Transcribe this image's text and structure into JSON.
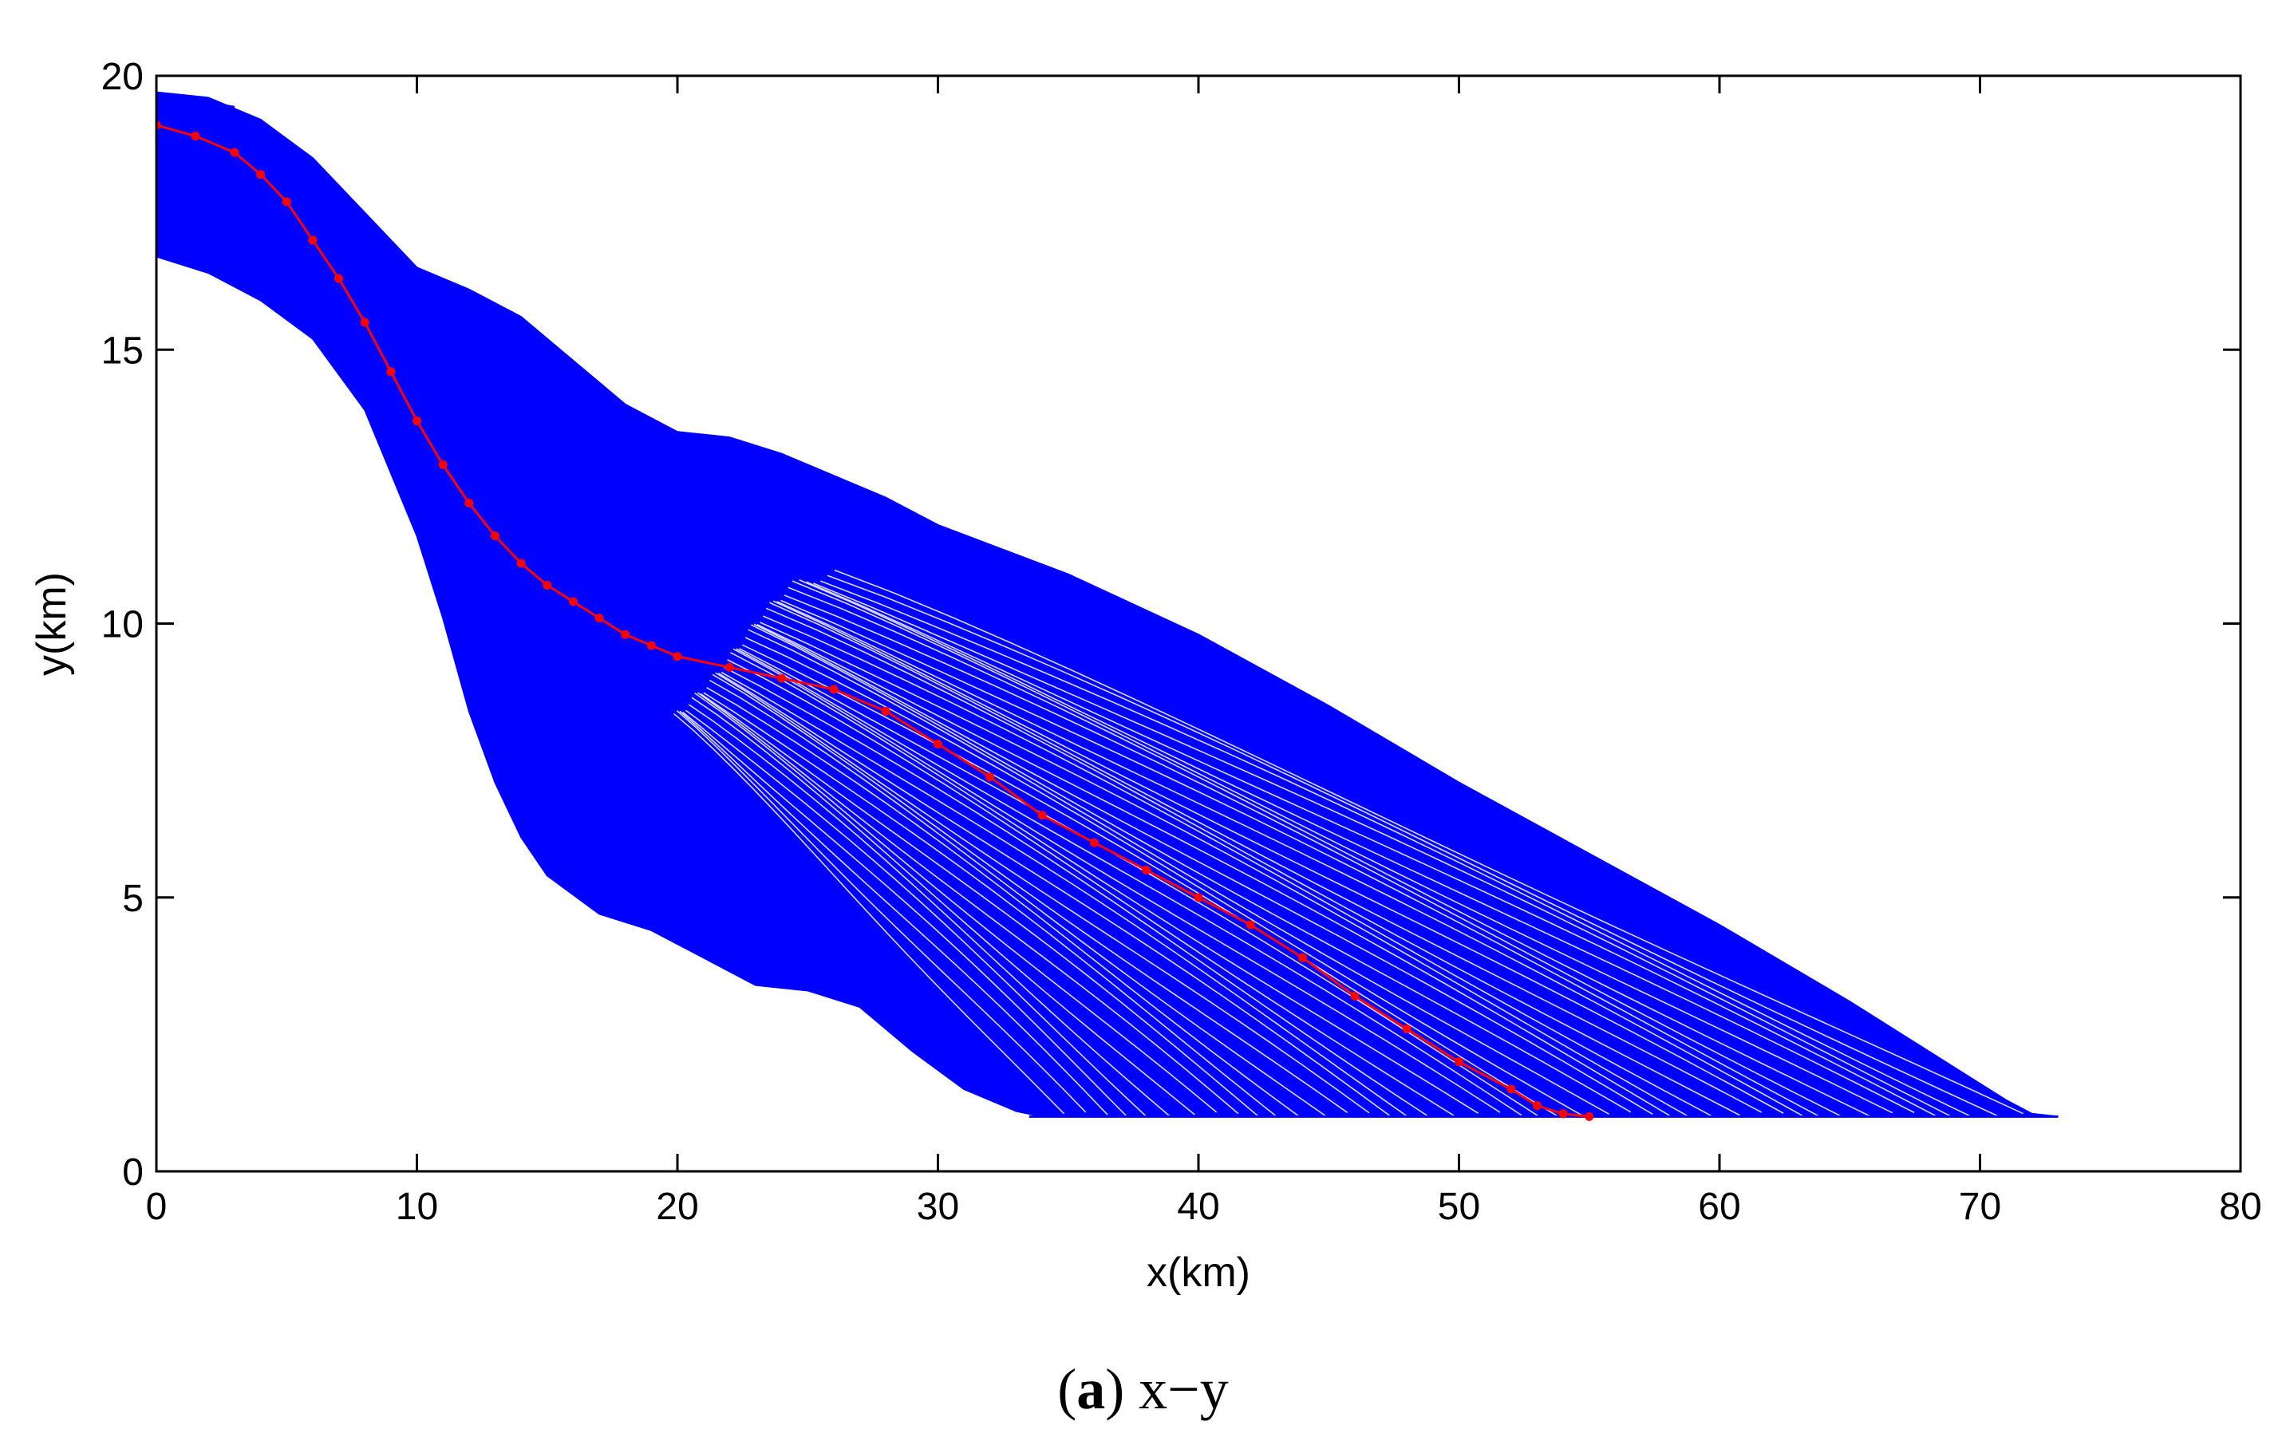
{
  "chart_data": {
    "type": "line",
    "xlabel": "x(km)",
    "ylabel": "y(km)",
    "xlim": [
      0,
      80
    ],
    "ylim": [
      0,
      20
    ],
    "xticks": [
      0,
      10,
      20,
      30,
      40,
      50,
      60,
      70,
      80
    ],
    "yticks": [
      0,
      5,
      10,
      15,
      20
    ],
    "grid": false,
    "colors": {
      "fan": "#0000ff",
      "path": "#ff0000",
      "axes": "#000000"
    },
    "series": [
      {
        "style": "blue-fan",
        "upper_envelope": [
          [
            0,
            19.7
          ],
          [
            2,
            19.6
          ],
          [
            4,
            19.2
          ],
          [
            6,
            18.5
          ],
          [
            8,
            17.5
          ],
          [
            10,
            16.5
          ],
          [
            12,
            16.1
          ],
          [
            14,
            15.6
          ],
          [
            16,
            14.8
          ],
          [
            18,
            14.0
          ],
          [
            20,
            13.5
          ],
          [
            22,
            13.4
          ],
          [
            24,
            13.1
          ],
          [
            26,
            12.7
          ],
          [
            28,
            12.3
          ],
          [
            30,
            11.8
          ],
          [
            35,
            10.9
          ],
          [
            40,
            9.8
          ],
          [
            45,
            8.5
          ],
          [
            50,
            7.1
          ],
          [
            55,
            5.8
          ],
          [
            60,
            4.5
          ],
          [
            65,
            3.1
          ],
          [
            69,
            1.9
          ],
          [
            71,
            1.3
          ],
          [
            72,
            1.05
          ],
          [
            73,
            1.0
          ]
        ],
        "lower_envelope": [
          [
            0,
            16.7
          ],
          [
            2,
            16.4
          ],
          [
            4,
            15.9
          ],
          [
            6,
            15.2
          ],
          [
            8,
            13.9
          ],
          [
            10,
            11.6
          ],
          [
            11,
            10.1
          ],
          [
            12,
            8.4
          ],
          [
            13,
            7.1
          ],
          [
            14,
            6.1
          ],
          [
            15,
            5.4
          ],
          [
            17,
            4.7
          ],
          [
            19,
            4.4
          ],
          [
            21,
            3.9
          ],
          [
            23,
            3.4
          ],
          [
            25,
            3.3
          ],
          [
            27,
            3.0
          ],
          [
            29,
            2.2
          ],
          [
            31,
            1.5
          ],
          [
            33,
            1.1
          ],
          [
            34,
            1.0
          ]
        ],
        "floor_y": 1.0
      },
      {
        "style": "red-marked-path",
        "x": [
          0,
          1.5,
          3,
          4,
          5,
          6,
          7,
          8,
          9,
          10,
          11,
          12,
          13,
          14,
          15,
          16,
          17,
          18,
          19,
          20,
          22,
          24,
          26,
          28,
          30,
          32,
          34,
          36,
          38,
          40,
          42,
          44,
          46,
          48,
          50,
          52,
          53,
          54,
          55
        ],
        "y": [
          19.1,
          18.9,
          18.6,
          18.2,
          17.7,
          17.0,
          16.3,
          15.5,
          14.6,
          13.7,
          12.9,
          12.2,
          11.6,
          11.1,
          10.7,
          10.4,
          10.1,
          9.8,
          9.6,
          9.4,
          9.2,
          9.0,
          8.8,
          8.4,
          7.8,
          7.2,
          6.5,
          6.0,
          5.5,
          5.0,
          4.5,
          3.9,
          3.2,
          2.6,
          2.0,
          1.5,
          1.2,
          1.05,
          1.0
        ]
      }
    ]
  },
  "caption": {
    "letter": "a",
    "text": "x−y"
  }
}
